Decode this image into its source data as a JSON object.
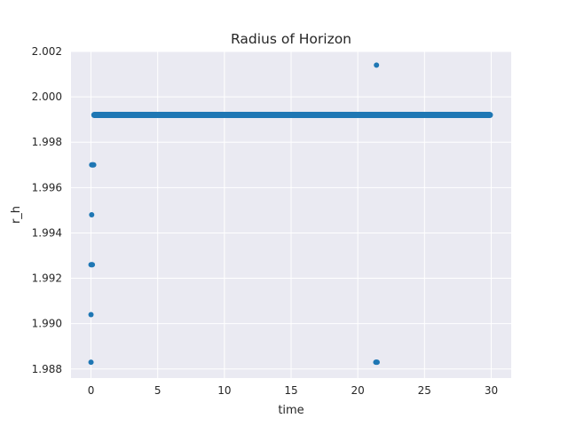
{
  "chart_data": {
    "type": "scatter",
    "title": "Radius of Horizon",
    "xlabel": "time",
    "ylabel": "r_h",
    "xlim": [
      -1.5,
      31.5
    ],
    "ylim": [
      1.9876,
      2.002
    ],
    "xticks": [
      0,
      5,
      10,
      15,
      20,
      25,
      30
    ],
    "xtick_labels": [
      "0",
      "5",
      "10",
      "15",
      "20",
      "25",
      "30"
    ],
    "yticks": [
      1.988,
      1.99,
      1.992,
      1.994,
      1.996,
      1.998,
      2.0,
      2.002
    ],
    "ytick_labels": [
      "1.988",
      "1.990",
      "1.992",
      "1.994",
      "1.996",
      "1.998",
      "2.000",
      "2.002"
    ],
    "grid": true,
    "style": "darkgrid",
    "colors": {
      "background": "#eaeaf2",
      "grid": "#ffffff",
      "marker": "#1f77b4"
    },
    "series": [
      {
        "points": [
          [
            0.0,
            1.9883
          ],
          [
            0.0,
            1.9904
          ],
          [
            0.0,
            1.9926
          ],
          [
            0.05,
            1.9926
          ],
          [
            0.1,
            1.9926
          ],
          [
            0.05,
            1.9948
          ],
          [
            0.05,
            1.997
          ],
          [
            0.1,
            1.997
          ],
          [
            0.15,
            1.997
          ],
          [
            0.2,
            1.997
          ],
          [
            21.4,
            2.0014
          ],
          [
            21.35,
            1.9883
          ],
          [
            21.4,
            1.9883
          ],
          [
            21.45,
            1.9883
          ]
        ],
        "band": {
          "x_start": 0.15,
          "x_end": 30.0,
          "y": 1.9992
        }
      }
    ]
  }
}
